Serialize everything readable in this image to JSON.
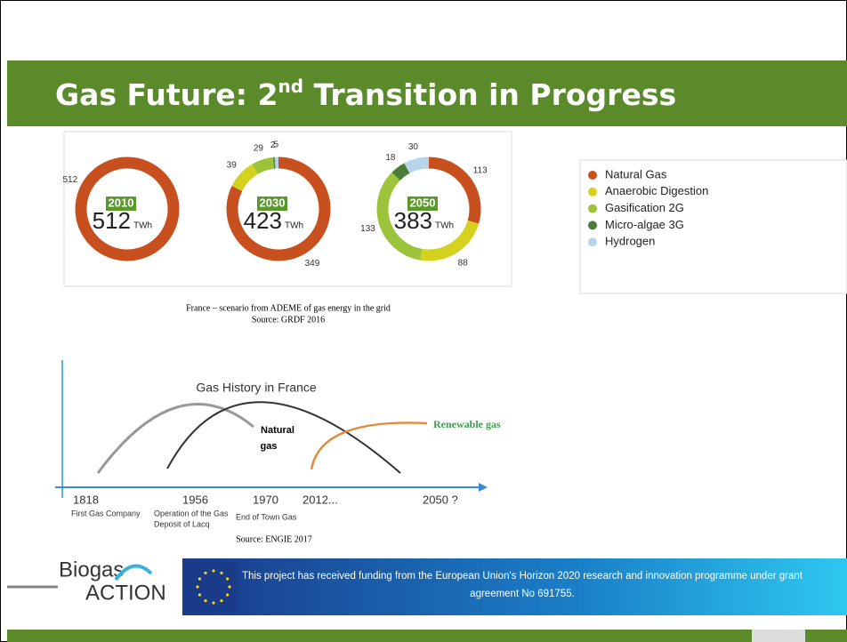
{
  "header": {
    "title": [
      "Gas Future: 2",
      "nd",
      " Transition in Progress"
    ]
  },
  "donuts": [
    {
      "year": "2010",
      "total": 512,
      "unit": "TWh",
      "segments": [
        {
          "value": 512,
          "color": "#c8501e"
        }
      ]
    },
    {
      "year": "2030",
      "total": 423,
      "unit": "TWh",
      "segments": [
        {
          "value": 349,
          "color": "#c8501e"
        },
        {
          "value": 39,
          "color": "#d4d21e"
        },
        {
          "value": 29,
          "color": "#9cc43a"
        },
        {
          "value": 2,
          "color": "#4a7d3a"
        },
        {
          "value": 5,
          "color": "#b8d4ea"
        }
      ]
    },
    {
      "year": "2050",
      "total": 383,
      "unit": "TWh",
      "segments": [
        {
          "value": 113,
          "color": "#c8501e"
        },
        {
          "value": 88,
          "color": "#d4d21e"
        },
        {
          "value": 133,
          "color": "#9cc43a"
        },
        {
          "value": 18,
          "color": "#4a7d3a"
        },
        {
          "value": 30,
          "color": "#b8d4ea"
        }
      ]
    }
  ],
  "legend": [
    {
      "name": "Natural Gas",
      "color": "#c8501e"
    },
    {
      "name": "Anaerobic Digestion",
      "color": "#d4d21e"
    },
    {
      "name": "Gasification 2G",
      "color": "#9cc43a"
    },
    {
      "name": "Micro-algae 3G",
      "color": "#4a7d3a"
    },
    {
      "name": "Hydrogen",
      "color": "#b8d4ea"
    }
  ],
  "caption": [
    "France – scenario from ADEME of gas energy in the grid",
    "Source: GRDF 2016"
  ],
  "history": {
    "title": "Gas History in France",
    "natural": [
      "Natural",
      "gas"
    ],
    "renewable": "Renewable gas",
    "years": [
      "1818",
      "1956",
      "1970",
      "2012...",
      "2050 ?"
    ],
    "events": [
      "First Gas Company",
      "Operation of the Gas",
      "Deposit of Lacq",
      "End of Town Gas"
    ],
    "source": "Source: ENGIE 2017"
  },
  "footer": {
    "logo": [
      "Biogas",
      "ACTION"
    ],
    "funding": [
      "This project has received funding from the European Union's Horizon 2020 research and innovation programme under grant",
      "agreement No 691755."
    ]
  }
}
